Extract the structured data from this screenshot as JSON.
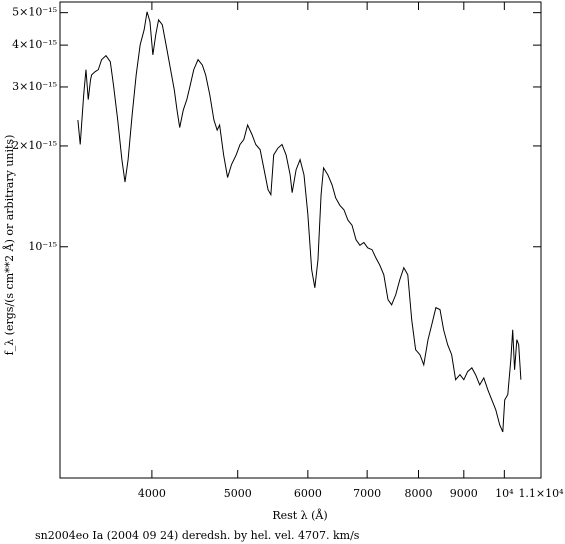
{
  "chart_data": {
    "type": "line",
    "xlabel": "Rest λ (Å)",
    "ylabel": "f_λ (ergs/(s cm**2 Å) or arbitrary units)",
    "caption": "sn2004eo Ia (2004 09 24) deredsh. by hel. vel.  4707. km/s",
    "xscale": "log",
    "yscale": "log",
    "color": "#000000",
    "xlim": [
      3150,
      11000
    ],
    "ylim": [
      2.04e-16,
      5.38e-15
    ],
    "xticks": [
      4000,
      5000,
      6000,
      7000,
      8000,
      9000,
      {
        "value": 10000,
        "label": "10⁴"
      },
      {
        "value": 11000,
        "label": "1.1×10⁴"
      }
    ],
    "yticks": [
      {
        "value": 1e-15,
        "label": "10⁻¹⁵"
      },
      {
        "value": 2e-15,
        "label": "2×10⁻¹⁵"
      },
      {
        "value": 3e-15,
        "label": "3×10⁻¹⁵"
      },
      {
        "value": 4e-15,
        "label": "4×10⁻¹⁵"
      },
      {
        "value": 5e-15,
        "label": "5×10⁻¹⁵"
      }
    ],
    "x": [
      3300,
      3320,
      3350,
      3370,
      3390,
      3410,
      3420,
      3450,
      3480,
      3510,
      3550,
      3590,
      3620,
      3660,
      3700,
      3730,
      3760,
      3800,
      3840,
      3880,
      3920,
      3950,
      3980,
      4010,
      4040,
      4070,
      4110,
      4150,
      4190,
      4240,
      4270,
      4300,
      4340,
      4380,
      4420,
      4460,
      4510,
      4560,
      4600,
      4650,
      4700,
      4740,
      4770,
      4820,
      4870,
      4920,
      4980,
      5030,
      5080,
      5130,
      5190,
      5240,
      5300,
      5350,
      5410,
      5450,
      5490,
      5550,
      5610,
      5670,
      5730,
      5760,
      5820,
      5880,
      5940,
      6000,
      6060,
      6110,
      6160,
      6210,
      6250,
      6320,
      6390,
      6450,
      6520,
      6590,
      6660,
      6730,
      6800,
      6870,
      6940,
      7010,
      7090,
      7160,
      7230,
      7310,
      7390,
      7460,
      7540,
      7620,
      7700,
      7780,
      7860,
      7940,
      8030,
      8110,
      8200,
      8280,
      8370,
      8460,
      8540,
      8630,
      8720,
      8810,
      8910,
      9000,
      9090,
      9190,
      9280,
      9380,
      9480,
      9580,
      9680,
      9780,
      9880,
      9960,
      10010,
      10090,
      10170,
      10220,
      10270,
      10330,
      10380,
      10440
    ],
    "values": [
      2.39e-15,
      2.02e-15,
      2.84e-15,
      3.38e-15,
      2.75e-15,
      3.15e-15,
      3.26e-15,
      3.33e-15,
      3.38e-15,
      3.62e-15,
      3.72e-15,
      3.57e-15,
      3.04e-15,
      2.39e-15,
      1.82e-15,
      1.56e-15,
      1.82e-15,
      2.48e-15,
      3.26e-15,
      4.01e-15,
      4.44e-15,
      5.03e-15,
      4.7e-15,
      3.74e-15,
      4.29e-15,
      4.76e-15,
      4.6e-15,
      4.01e-15,
      3.49e-15,
      2.94e-15,
      2.56e-15,
      2.27e-15,
      2.56e-15,
      2.75e-15,
      3.04e-15,
      3.38e-15,
      3.62e-15,
      3.49e-15,
      3.26e-15,
      2.84e-15,
      2.39e-15,
      2.23e-15,
      2.31e-15,
      1.88e-15,
      1.61e-15,
      1.76e-15,
      1.88e-15,
      2.02e-15,
      2.09e-15,
      2.31e-15,
      2.16e-15,
      2.02e-15,
      1.95e-15,
      1.72e-15,
      1.48e-15,
      1.43e-15,
      1.88e-15,
      1.97e-15,
      2.02e-15,
      1.88e-15,
      1.64e-15,
      1.45e-15,
      1.7e-15,
      1.82e-15,
      1.64e-15,
      1.25e-15,
      8.54e-16,
      7.54e-16,
      9.15e-16,
      1.43e-15,
      1.72e-15,
      1.64e-15,
      1.53e-15,
      1.4e-15,
      1.33e-15,
      1.29e-15,
      1.2e-15,
      1.16e-15,
      1.05e-15,
      1.01e-15,
      1.03e-15,
      9.93e-16,
      9.8e-16,
      9.27e-16,
      8.84e-16,
      8.25e-16,
      6.95e-16,
      6.71e-16,
      7.19e-16,
      7.97e-16,
      8.66e-16,
      8.25e-16,
      6.05e-16,
      4.93e-16,
      4.76e-16,
      4.44e-16,
      5.28e-16,
      5.85e-16,
      6.58e-16,
      6.49e-16,
      5.65e-16,
      5.1e-16,
      4.76e-16,
      4.01e-16,
      4.15e-16,
      4.01e-16,
      4.24e-16,
      4.35e-16,
      4.15e-16,
      3.87e-16,
      4.06e-16,
      3.74e-16,
      3.49e-16,
      3.26e-16,
      2.94e-16,
      2.8e-16,
      3.49e-16,
      3.62e-16,
      4.6e-16,
      5.65e-16,
      4.29e-16,
      5.28e-16,
      5.1e-16,
      4.01e-16
    ]
  }
}
